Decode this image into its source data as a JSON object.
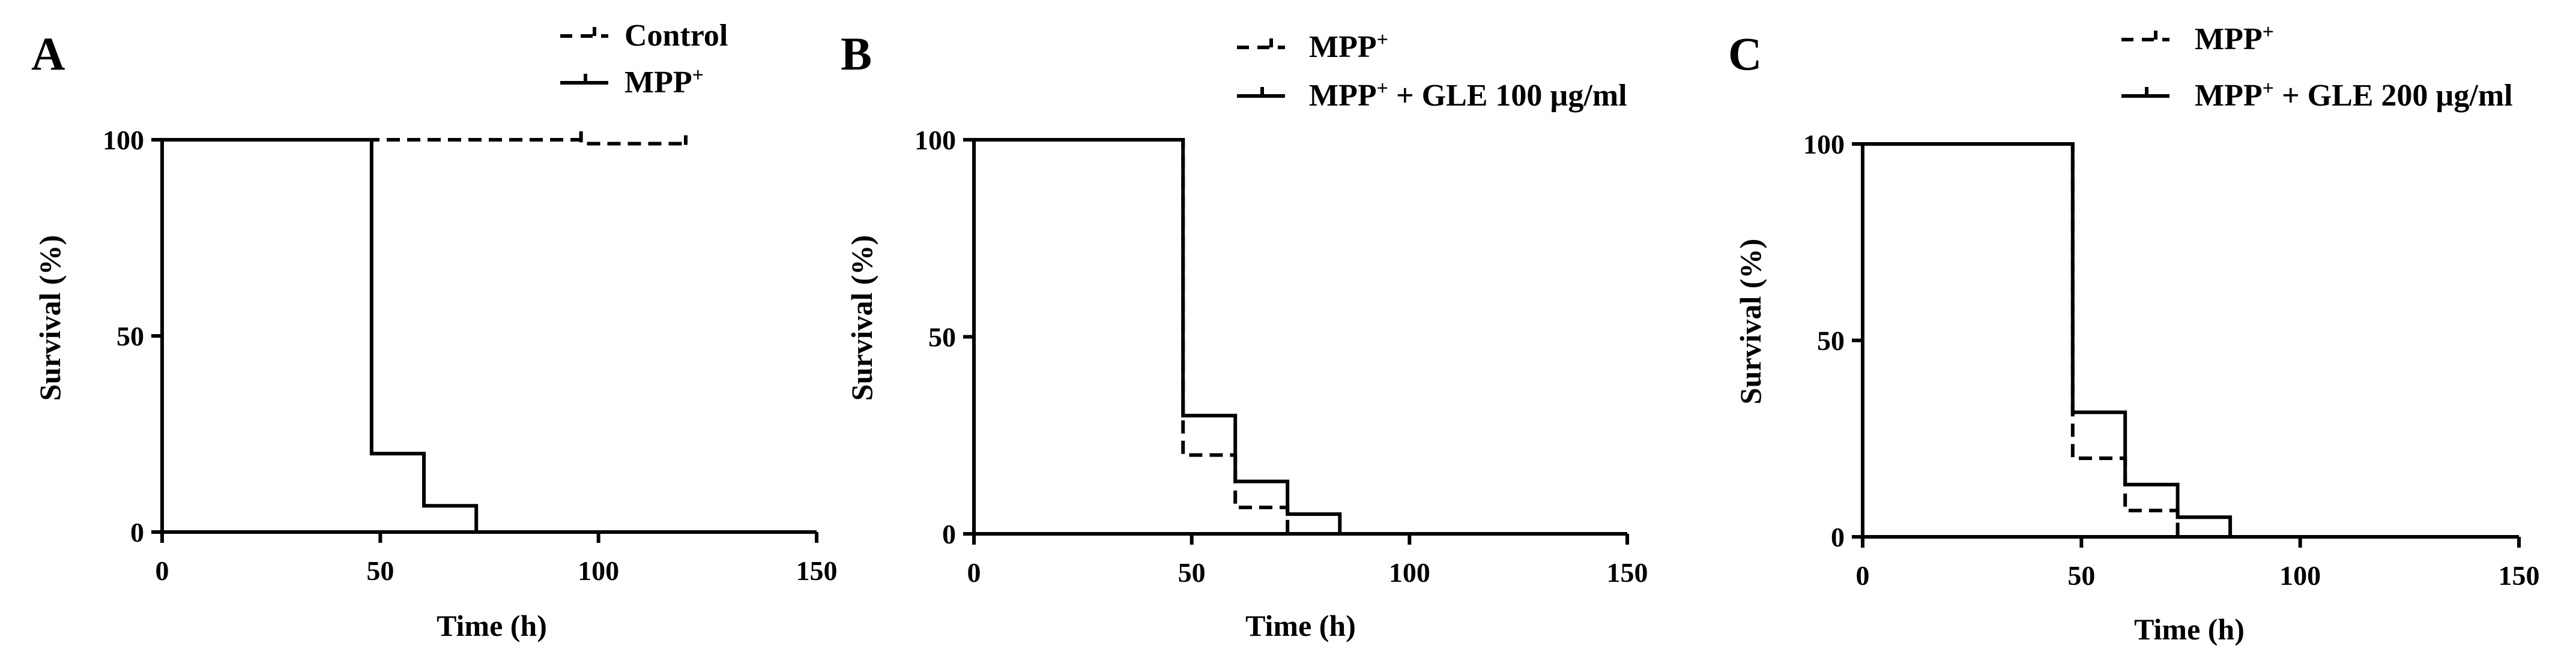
{
  "figure": {
    "background": "#ffffff",
    "line_color": "#000000"
  },
  "chart_data": [
    {
      "type": "line",
      "subtype": "kaplan-meier step",
      "panel_letter": "A",
      "xlabel": "Time (h)",
      "ylabel": "Survival (%)",
      "xlim": [
        0,
        150
      ],
      "ylim": [
        0,
        100
      ],
      "xticks": [
        "0",
        "50",
        "100",
        "150"
      ],
      "yticks": [
        "0",
        "50",
        "100"
      ],
      "legend_position": "top-right",
      "series": [
        {
          "name": "Control",
          "legend_main": "Control",
          "legend_sup": "",
          "dash": "dashed",
          "steps": [
            [
              0,
              100
            ],
            [
              96,
              100
            ],
            [
              96,
              99
            ],
            [
              120,
              99
            ]
          ],
          "censor_marks": [
            [
              96,
              100
            ],
            [
              120,
              99
            ]
          ]
        },
        {
          "name": "MPP+",
          "legend_main": "MPP",
          "legend_sup": "+",
          "dash": "solid",
          "steps": [
            [
              0,
              100
            ],
            [
              48,
              100
            ],
            [
              48,
              20
            ],
            [
              60,
              20
            ],
            [
              60,
              6.7
            ],
            [
              72,
              6.7
            ],
            [
              72,
              0
            ],
            [
              150,
              0
            ]
          ],
          "censor_marks": []
        }
      ]
    },
    {
      "type": "line",
      "subtype": "kaplan-meier step",
      "panel_letter": "B",
      "xlabel": "Time (h)",
      "ylabel": "Survival (%)",
      "xlim": [
        0,
        150
      ],
      "ylim": [
        0,
        100
      ],
      "xticks": [
        "0",
        "50",
        "100",
        "150"
      ],
      "yticks": [
        "0",
        "50",
        "100"
      ],
      "legend_position": "top-right",
      "series": [
        {
          "name": "MPP+",
          "legend_main": "MPP",
          "legend_sup": "+",
          "dash": "dashed",
          "steps": [
            [
              0,
              100
            ],
            [
              48,
              100
            ],
            [
              48,
              20
            ],
            [
              60,
              20
            ],
            [
              60,
              6.7
            ],
            [
              72,
              6.7
            ],
            [
              72,
              0
            ]
          ],
          "censor_marks": []
        },
        {
          "name": "MPP+ + GLE 100 µg/ml",
          "legend_main": "MPP",
          "legend_sup": "+",
          "legend_tail": " + GLE 100 µg/ml",
          "dash": "solid",
          "steps": [
            [
              0,
              100
            ],
            [
              48,
              100
            ],
            [
              48,
              30
            ],
            [
              60,
              30
            ],
            [
              60,
              13.3
            ],
            [
              72,
              13.3
            ],
            [
              72,
              5
            ],
            [
              84,
              5
            ],
            [
              84,
              0
            ],
            [
              150,
              0
            ]
          ],
          "censor_marks": []
        }
      ]
    },
    {
      "type": "line",
      "subtype": "kaplan-meier step",
      "panel_letter": "C",
      "xlabel": "Time (h)",
      "ylabel": "Survival (%)",
      "xlim": [
        0,
        150
      ],
      "ylim": [
        0,
        100
      ],
      "xticks": [
        "0",
        "50",
        "100",
        "150"
      ],
      "yticks": [
        "0",
        "50",
        "100"
      ],
      "legend_position": "top-right",
      "series": [
        {
          "name": "MPP+",
          "legend_main": "MPP",
          "legend_sup": "+",
          "dash": "dashed",
          "steps": [
            [
              0,
              100
            ],
            [
              48,
              100
            ],
            [
              48,
              20
            ],
            [
              60,
              20
            ],
            [
              60,
              6.7
            ],
            [
              72,
              6.7
            ],
            [
              72,
              0
            ]
          ],
          "censor_marks": []
        },
        {
          "name": "MPP+ + GLE 200 µg/ml",
          "legend_main": "MPP",
          "legend_sup": "+",
          "legend_tail": " + GLE 200 µg/ml",
          "dash": "solid",
          "steps": [
            [
              0,
              100
            ],
            [
              48,
              100
            ],
            [
              48,
              31.7
            ],
            [
              60,
              31.7
            ],
            [
              60,
              13.3
            ],
            [
              72,
              13.3
            ],
            [
              72,
              5
            ],
            [
              84,
              5
            ],
            [
              84,
              0
            ],
            [
              150,
              0
            ]
          ],
          "censor_marks": []
        }
      ]
    }
  ]
}
